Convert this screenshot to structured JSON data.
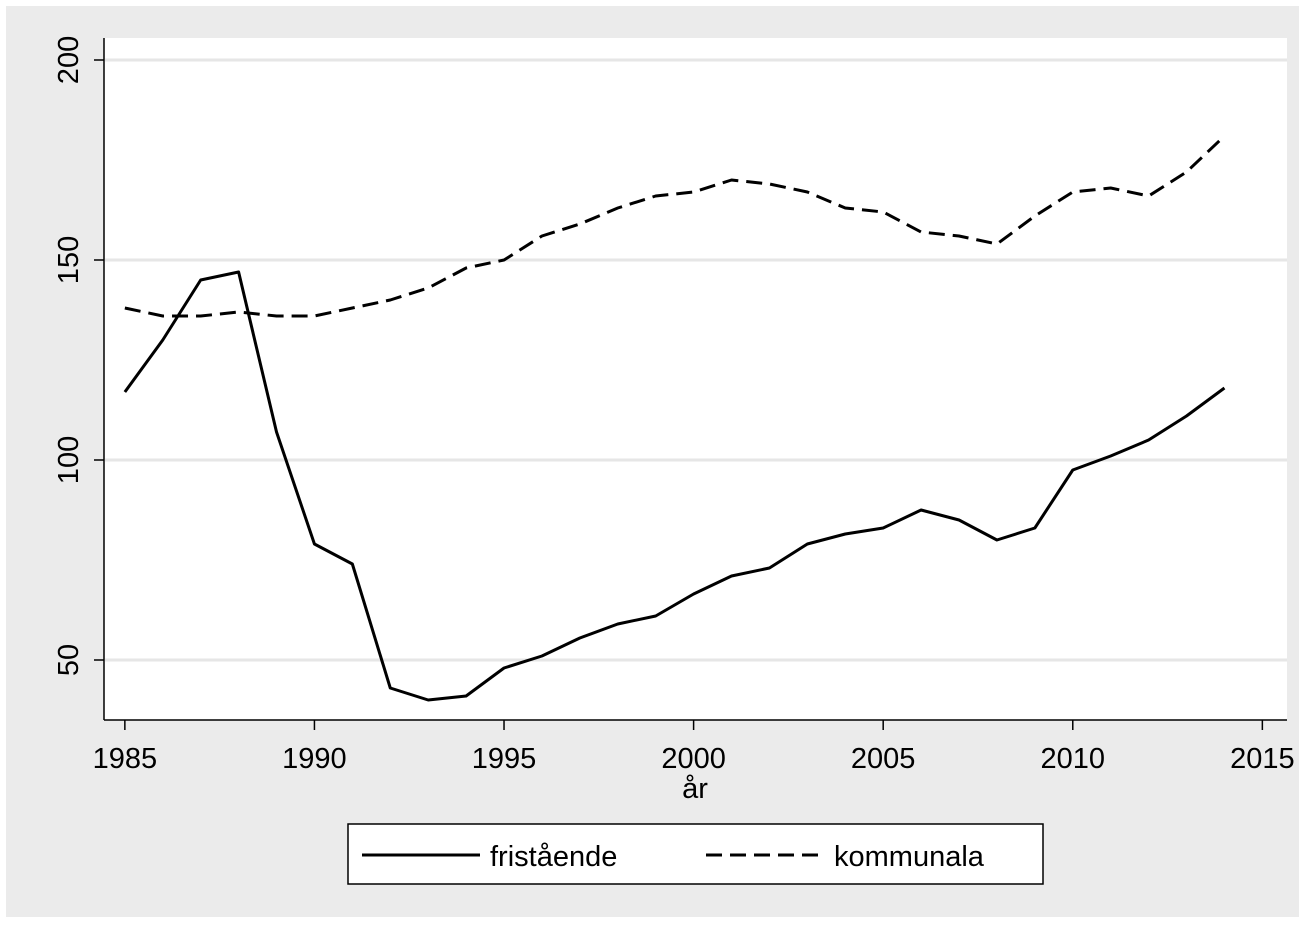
{
  "chart_data": {
    "type": "line",
    "x_label": "år",
    "x": [
      1985,
      1986,
      1987,
      1988,
      1989,
      1990,
      1991,
      1992,
      1993,
      1994,
      1995,
      1996,
      1997,
      1998,
      1999,
      2000,
      2001,
      2002,
      2003,
      2004,
      2005,
      2006,
      2007,
      2008,
      2009,
      2010,
      2011,
      2012,
      2013,
      2014
    ],
    "series": [
      {
        "name": "fristående",
        "color": "#000000",
        "line_style": "solid",
        "values": [
          117,
          130,
          145,
          147,
          107,
          79,
          74,
          43,
          40,
          41,
          48,
          51,
          55.5,
          59,
          61,
          66.5,
          71,
          73,
          79,
          81.5,
          83,
          87.5,
          85,
          80,
          83,
          97.5,
          101,
          105,
          111,
          118
        ]
      },
      {
        "name": "kommunala",
        "color": "#000000",
        "line_style": "dashed",
        "values": [
          138,
          136,
          136,
          137,
          136,
          136,
          138,
          140,
          143,
          148,
          150,
          156,
          159,
          163,
          166,
          167,
          170,
          169,
          167,
          163,
          162,
          157,
          156,
          154,
          161,
          167,
          168,
          166,
          172,
          181
        ]
      }
    ],
    "xlim": [
      1984.45,
      2015.65
    ],
    "xticks": [
      1985,
      1990,
      1995,
      2000,
      2005,
      2010,
      2015
    ],
    "ylim": [
      35,
      205.5
    ],
    "yticks": [
      50,
      100,
      150,
      200
    ],
    "grid": true,
    "legend": "bottom"
  }
}
